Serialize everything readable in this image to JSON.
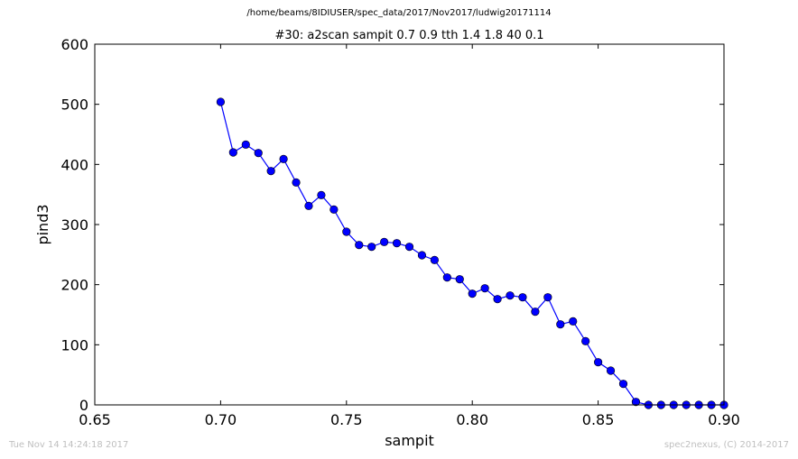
{
  "suptitle": "/home/beams/8IDIUSER/spec_data/2017/Nov2017/ludwig20171114",
  "footer": {
    "timestamp": "Tue Nov 14 14:24:18 2017",
    "credit": "spec2nexus, (C) 2014-2017"
  },
  "chart_data": {
    "type": "line",
    "title": "#30: a2scan  sampit 0.7 0.9  tth 1.4 1.8  40 0.1",
    "xlabel": "sampit",
    "ylabel": "pind3",
    "xlim": [
      0.65,
      0.9
    ],
    "ylim": [
      0,
      600
    ],
    "xticks": [
      0.65,
      0.7,
      0.75,
      0.8,
      0.85,
      0.9
    ],
    "xtick_labels": [
      "0.65",
      "0.70",
      "0.75",
      "0.80",
      "0.85",
      "0.90"
    ],
    "yticks": [
      0,
      100,
      200,
      300,
      400,
      500,
      600
    ],
    "ytick_labels": [
      "0",
      "100",
      "200",
      "300",
      "400",
      "500",
      "600"
    ],
    "grid": false,
    "marker": "circle",
    "color": "#0000ff",
    "x": [
      0.7,
      0.705,
      0.71,
      0.715,
      0.72,
      0.725,
      0.73,
      0.735,
      0.74,
      0.745,
      0.75,
      0.755,
      0.76,
      0.765,
      0.77,
      0.775,
      0.78,
      0.785,
      0.79,
      0.795,
      0.8,
      0.805,
      0.81,
      0.815,
      0.82,
      0.825,
      0.83,
      0.835,
      0.84,
      0.845,
      0.85,
      0.855,
      0.86,
      0.865,
      0.87,
      0.875,
      0.88,
      0.885,
      0.89,
      0.895,
      0.9
    ],
    "y": [
      504,
      420,
      433,
      419,
      389,
      409,
      370,
      331,
      349,
      325,
      288,
      266,
      263,
      271,
      269,
      263,
      249,
      241,
      212,
      209,
      185,
      194,
      176,
      182,
      179,
      155,
      179,
      134,
      139,
      106,
      71,
      57,
      35,
      5,
      0,
      0,
      0,
      0,
      0,
      0,
      0
    ]
  }
}
